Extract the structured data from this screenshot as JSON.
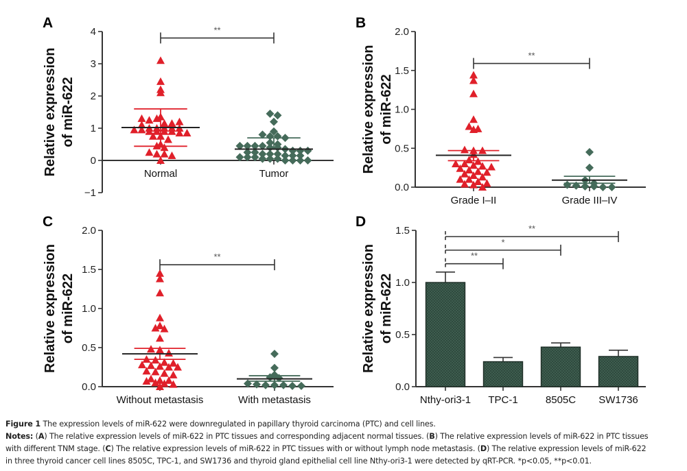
{
  "chart_data": [
    {
      "id": "A",
      "type": "scatter",
      "panel_label": "A",
      "ylabel_lines": [
        "Relative expression",
        "of miR-622"
      ],
      "ylim": [
        -1,
        4
      ],
      "yticks": [
        -1,
        0,
        1,
        2,
        3,
        4
      ],
      "ytick_labels": [
        "−1",
        "0",
        "1",
        "2",
        "3",
        "4"
      ],
      "categories": [
        "Normal",
        "Tumor"
      ],
      "series": [
        {
          "name": "Normal",
          "marker": "triangle",
          "color": "#e0202a",
          "mean": 1.02,
          "sem_upper": 1.6,
          "sem_lower": 0.44,
          "values": [
            3.1,
            2.45,
            2.1,
            2.2,
            1.35,
            1.3,
            1.25,
            1.3,
            1.15,
            1.15,
            1.2,
            1.1,
            1.0,
            1.0,
            1.0,
            1.0,
            1.0,
            0.95,
            0.95,
            0.9,
            0.9,
            0.9,
            0.9,
            0.85,
            0.85,
            0.75,
            0.75,
            0.65,
            0.5,
            0.45,
            0.4,
            0.25,
            0.2,
            0.2,
            0.15,
            0.0
          ]
        },
        {
          "name": "Tumor",
          "marker": "diamond",
          "color": "#456b5a",
          "mean": 0.35,
          "sem_upper": 0.7,
          "sem_lower": 0.35,
          "values": [
            1.45,
            1.4,
            1.2,
            0.9,
            0.8,
            0.75,
            0.75,
            0.7,
            0.55,
            0.5,
            0.45,
            0.45,
            0.45,
            0.45,
            0.4,
            0.4,
            0.35,
            0.3,
            0.3,
            0.3,
            0.25,
            0.25,
            0.2,
            0.2,
            0.2,
            0.15,
            0.15,
            0.15,
            0.1,
            0.1,
            0.1,
            0.05,
            0.05,
            0.05,
            0.0,
            0.0,
            0.0,
            0.0
          ]
        }
      ],
      "significance": [
        {
          "from": "Normal",
          "to": "Tumor",
          "label": "**",
          "y": 3.8
        }
      ]
    },
    {
      "id": "B",
      "type": "scatter",
      "panel_label": "B",
      "ylabel_lines": [
        "Relative expression",
        "of miR-622"
      ],
      "ylim": [
        0,
        2.0
      ],
      "yticks": [
        0,
        0.5,
        1.0,
        1.5,
        2.0
      ],
      "ytick_labels": [
        "0.0",
        "0.5",
        "1.0",
        "1.5",
        "2.0"
      ],
      "categories": [
        "Grade I–II",
        "Grade III–IV"
      ],
      "series": [
        {
          "name": "Grade I–II",
          "marker": "triangle",
          "color": "#e0202a",
          "mean": 0.41,
          "sem_upper": 0.47,
          "sem_lower": 0.34,
          "values": [
            1.44,
            1.37,
            1.2,
            0.87,
            0.78,
            0.74,
            0.75,
            0.48,
            0.47,
            0.47,
            0.42,
            0.35,
            0.33,
            0.3,
            0.3,
            0.28,
            0.27,
            0.26,
            0.24,
            0.22,
            0.2,
            0.19,
            0.17,
            0.15,
            0.13,
            0.1,
            0.1,
            0.07,
            0.05,
            0.04,
            0.03,
            0.0
          ]
        },
        {
          "name": "Grade III–IV",
          "marker": "diamond",
          "color": "#456b5a",
          "mean": 0.09,
          "sem_upper": 0.14,
          "sem_lower": 0.05,
          "values": [
            0.45,
            0.25,
            0.09,
            0.05,
            0.03,
            0.02,
            0.01,
            0.01,
            0.0,
            0.0
          ]
        }
      ],
      "significance": [
        {
          "from": "Grade I–II",
          "to": "Grade III–IV",
          "label": "**",
          "y": 1.59
        }
      ]
    },
    {
      "id": "C",
      "type": "scatter",
      "panel_label": "C",
      "ylabel_lines": [
        "Relative expression",
        "of miR-622"
      ],
      "ylim": [
        0,
        2.0
      ],
      "yticks": [
        0,
        0.5,
        1.0,
        1.5,
        2.0
      ],
      "ytick_labels": [
        "0.0",
        "0.5",
        "1.0",
        "1.5",
        "2.0"
      ],
      "categories": [
        "Without metastasis",
        "With metastasis"
      ],
      "series": [
        {
          "name": "Without metastasis",
          "marker": "triangle",
          "color": "#e0202a",
          "mean": 0.42,
          "sem_upper": 0.49,
          "sem_lower": 0.35,
          "values": [
            1.45,
            1.38,
            1.2,
            0.88,
            0.78,
            0.75,
            0.74,
            0.62,
            0.48,
            0.47,
            0.43,
            0.35,
            0.34,
            0.31,
            0.3,
            0.28,
            0.27,
            0.26,
            0.25,
            0.25,
            0.2,
            0.19,
            0.17,
            0.15,
            0.1,
            0.08,
            0.08,
            0.07,
            0.05,
            0.04,
            0.03,
            0.0
          ]
        },
        {
          "name": "With metastasis",
          "marker": "diamond",
          "color": "#456b5a",
          "mean": 0.1,
          "sem_upper": 0.14,
          "sem_lower": 0.07,
          "values": [
            0.42,
            0.24,
            0.15,
            0.12,
            0.11,
            0.04,
            0.03,
            0.02,
            0.02,
            0.02,
            0.01,
            0.01
          ]
        }
      ],
      "significance": [
        {
          "from": "Without metastasis",
          "to": "With metastasis",
          "label": "**",
          "y": 1.56
        }
      ]
    },
    {
      "id": "D",
      "type": "bar",
      "panel_label": "D",
      "ylabel_lines": [
        "Relative expression",
        "of miR-622"
      ],
      "ylim": [
        0,
        1.5
      ],
      "yticks": [
        0,
        0.5,
        1.0,
        1.5
      ],
      "ytick_labels": [
        "0.0",
        "0.5",
        "1.0",
        "1.5"
      ],
      "categories": [
        "Nthy-ori3-1",
        "TPC-1",
        "8505C",
        "SW1736"
      ],
      "values": [
        1.0,
        0.24,
        0.38,
        0.29
      ],
      "errors": [
        0.1,
        0.04,
        0.04,
        0.06
      ],
      "bar_color": "#2f4a3e",
      "significance": [
        {
          "from": "Nthy-ori3-1",
          "to": "TPC-1",
          "label": "**",
          "y": 1.18
        },
        {
          "from": "Nthy-ori3-1",
          "to": "8505C",
          "label": "*",
          "y": 1.31
        },
        {
          "from": "Nthy-ori3-1",
          "to": "SW1736",
          "label": "**",
          "y": 1.44
        }
      ]
    }
  ],
  "caption": {
    "figure_label": "Figure 1",
    "title": "The expression levels of miR-622 were downregulated in papillary thyroid carcinoma (PTC) and cell lines.",
    "notes_label": "Notes:",
    "notes_lines": [
      [
        {
          "t": " ("
        },
        {
          "t": "A",
          "b": true
        },
        {
          "t": ") The relative expression levels of miR-622 in PTC tissues and corresponding adjacent normal tissues. ("
        },
        {
          "t": "B",
          "b": true
        },
        {
          "t": ") The relative expression levels of miR-622 in PTC tissues"
        }
      ],
      [
        {
          "t": "with different TNM stage. ("
        },
        {
          "t": "C",
          "b": true
        },
        {
          "t": ") The relative expression levels of miR-622 in PTC tissues with or without lymph node metastasis. ("
        },
        {
          "t": "D",
          "b": true
        },
        {
          "t": ") The relative expression levels of miR-622"
        }
      ],
      [
        {
          "t": "in three thyroid cancer cell lines 8505C, TPC-1, and SW1736 and thyroid gland epithelial cell line Nthy-ori3-1 were detected by qRT-PCR. *p<0.05, **p<0.01."
        }
      ]
    ]
  }
}
